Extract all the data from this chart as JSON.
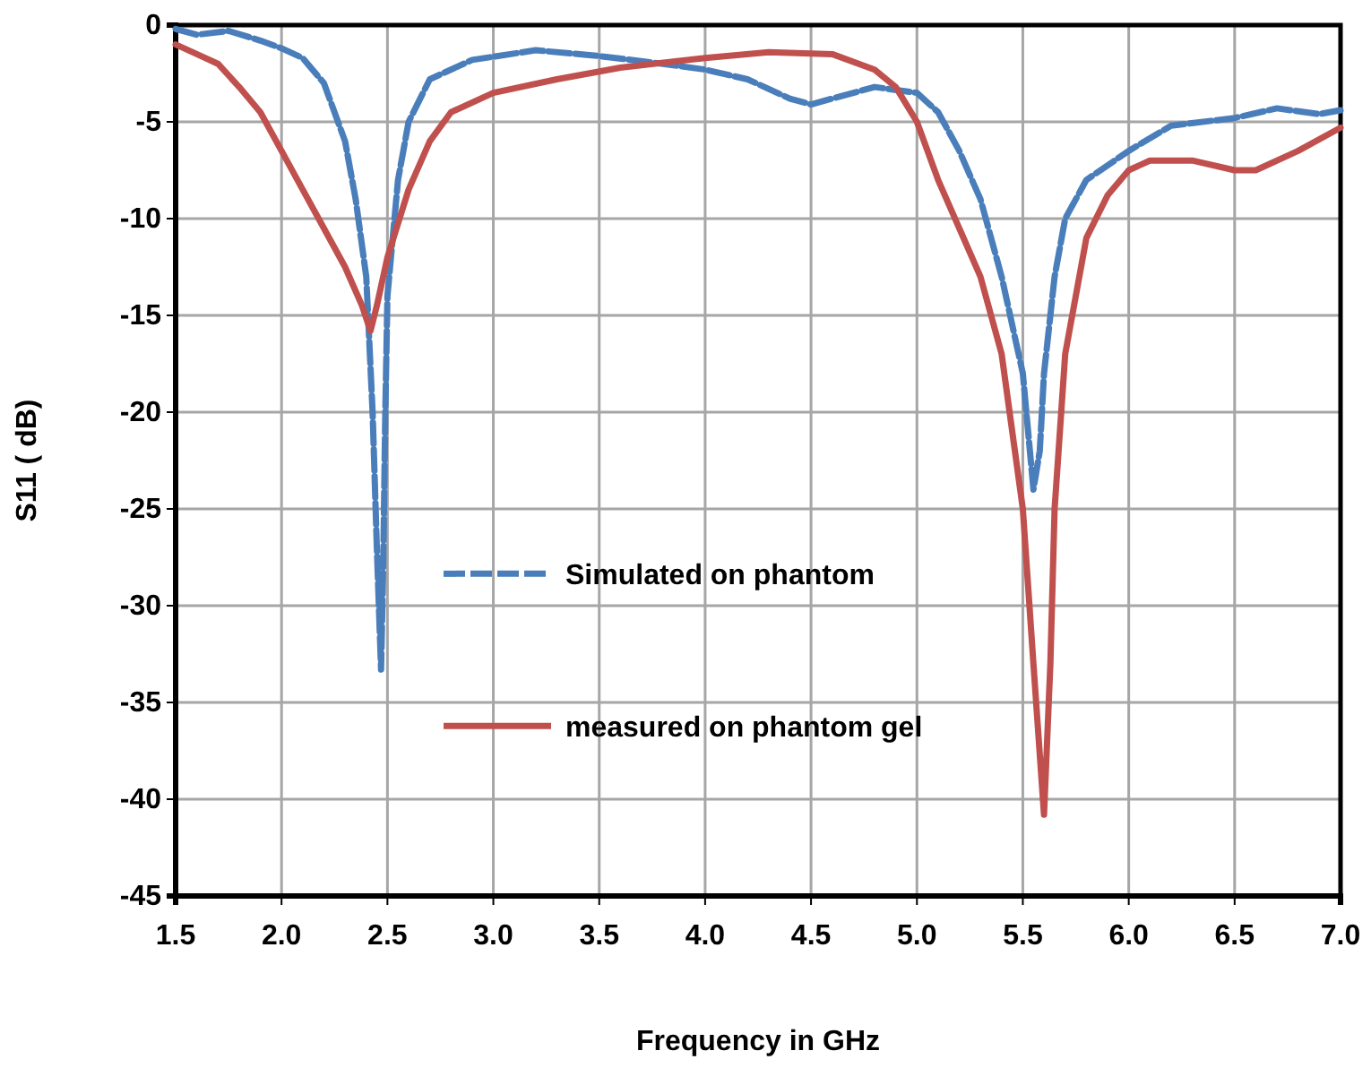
{
  "chart_data": {
    "type": "line",
    "xlabel": "Frequency  in GHz",
    "ylabel": "S11 ( dB)",
    "xlim": [
      1.5,
      7.0
    ],
    "xticks": [
      1.5,
      {
        "value": 2,
        "label": "2.0"
      },
      2.5,
      {
        "value": 3,
        "label": "3.0"
      },
      3.5,
      {
        "value": 4,
        "label": "4.0"
      },
      4.5,
      {
        "value": 5,
        "label": "5.0"
      },
      5.5,
      {
        "value": 6,
        "label": "6.0"
      },
      6.5,
      {
        "value": 7,
        "label": "7.0"
      }
    ],
    "ylim": [
      -45,
      0
    ],
    "yticks": [
      -45,
      -40,
      -35,
      -30,
      -25,
      -20,
      -15,
      -10,
      -5,
      0
    ],
    "grid": true,
    "legend": "center",
    "series": [
      {
        "name": "Simulated on phantom",
        "color": "#4a7ebb",
        "line_style": "dashed",
        "x": [
          1.5,
          1.6,
          1.75,
          1.9,
          2.0,
          2.1,
          2.2,
          2.3,
          2.35,
          2.4,
          2.43,
          2.45,
          2.47,
          2.48,
          2.49,
          2.5,
          2.55,
          2.6,
          2.7,
          2.9,
          3.2,
          3.5,
          3.8,
          4.0,
          4.2,
          4.4,
          4.5,
          4.6,
          4.8,
          5.0,
          5.1,
          5.2,
          5.3,
          5.4,
          5.5,
          5.55,
          5.58,
          5.6,
          5.65,
          5.7,
          5.8,
          6.0,
          6.2,
          6.5,
          6.7,
          6.9,
          7.0
        ],
        "values": [
          -0.2,
          -0.5,
          -0.3,
          -0.8,
          -1.2,
          -1.7,
          -3,
          -6,
          -9,
          -13,
          -20,
          -27,
          -33.3,
          -28,
          -20,
          -14,
          -8,
          -5,
          -2.8,
          -1.8,
          -1.3,
          -1.6,
          -2,
          -2.3,
          -2.8,
          -3.8,
          -4.1,
          -3.8,
          -3.2,
          -3.5,
          -4.5,
          -6.5,
          -9,
          -13,
          -18,
          -24,
          -22,
          -18,
          -13,
          -10,
          -8,
          -6.5,
          -5.2,
          -4.8,
          -4.3,
          -4.6,
          -4.4
        ]
      },
      {
        "name": "measured on phantom gel",
        "color": "#c0504d",
        "line_style": "solid",
        "x": [
          1.5,
          1.6,
          1.7,
          1.8,
          1.9,
          2.0,
          2.1,
          2.2,
          2.3,
          2.38,
          2.42,
          2.45,
          2.5,
          2.6,
          2.7,
          2.8,
          3.0,
          3.3,
          3.6,
          4.0,
          4.3,
          4.6,
          4.8,
          4.9,
          5.0,
          5.1,
          5.2,
          5.3,
          5.4,
          5.5,
          5.55,
          5.6,
          5.63,
          5.65,
          5.7,
          5.8,
          5.9,
          6.0,
          6.1,
          6.3,
          6.5,
          6.6,
          6.8,
          7.0
        ],
        "values": [
          -1,
          -1.5,
          -2,
          -3.2,
          -4.5,
          -6.5,
          -8.5,
          -10.5,
          -12.5,
          -14.5,
          -15.8,
          -14.5,
          -12,
          -8.5,
          -6,
          -4.5,
          -3.5,
          -2.8,
          -2.2,
          -1.7,
          -1.4,
          -1.5,
          -2.3,
          -3.2,
          -5,
          -8,
          -10.5,
          -13,
          -17,
          -25,
          -33,
          -40.8,
          -33,
          -25,
          -17,
          -11,
          -8.8,
          -7.5,
          -7,
          -7,
          -7.5,
          -7.5,
          -6.5,
          -5.3
        ]
      }
    ]
  }
}
